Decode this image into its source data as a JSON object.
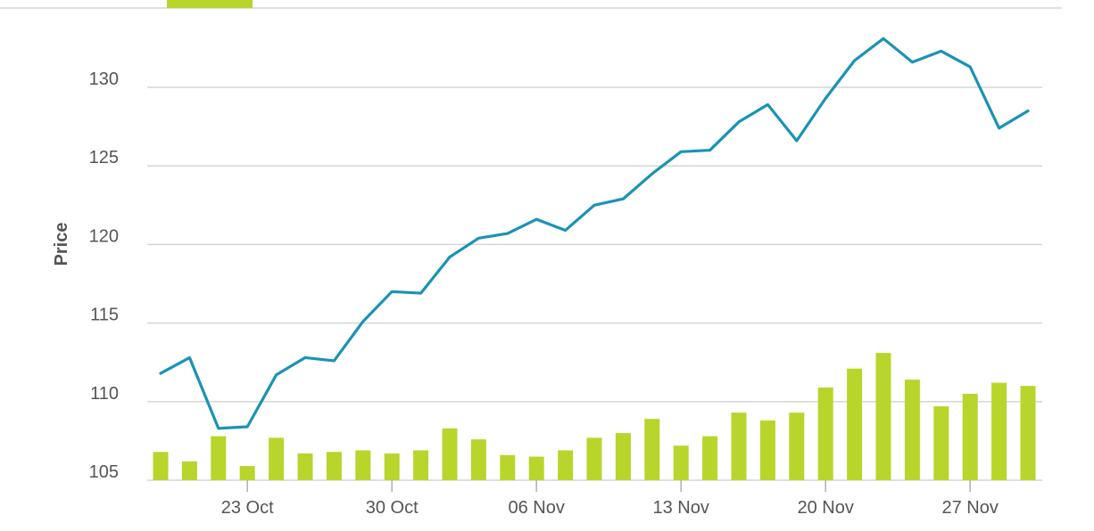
{
  "chart_data": {
    "type": "line",
    "title": "",
    "ylabel": "Price",
    "xlabel": "",
    "ylim": [
      105,
      133.5
    ],
    "yticks": [
      105,
      110,
      115,
      120,
      125,
      130
    ],
    "ytick_labels": [
      "105",
      "110",
      "115",
      "120",
      "125",
      "130"
    ],
    "xtick_labels": [
      {
        "date": "2023-10-23",
        "label": "23 Oct"
      },
      {
        "date": "2023-10-30",
        "label": "30 Oct"
      },
      {
        "date": "2023-11-06",
        "label": "06 Nov"
      },
      {
        "date": "2023-11-13",
        "label": "13 Nov"
      },
      {
        "date": "2023-11-20",
        "label": "20 Nov"
      },
      {
        "date": "2023-11-27",
        "label": "27 Nov"
      }
    ],
    "x": [
      "2023-10-18",
      "2023-10-19",
      "2023-10-20",
      "2023-10-23",
      "2023-10-24",
      "2023-10-25",
      "2023-10-26",
      "2023-10-27",
      "2023-10-30",
      "2023-10-31",
      "2023-11-01",
      "2023-11-02",
      "2023-11-03",
      "2023-11-06",
      "2023-11-07",
      "2023-11-08",
      "2023-11-09",
      "2023-11-10",
      "2023-11-13",
      "2023-11-14",
      "2023-11-15",
      "2023-11-16",
      "2023-11-17",
      "2023-11-20",
      "2023-11-21",
      "2023-11-22",
      "2023-11-23",
      "2023-11-24",
      "2023-11-27",
      "2023-11-28",
      "2023-11-29"
    ],
    "series": [
      {
        "type": "line",
        "values": [
          111.8,
          112.8,
          108.3,
          108.4,
          111.7,
          112.8,
          112.6,
          115.1,
          117.0,
          116.9,
          119.2,
          120.4,
          120.7,
          121.6,
          120.9,
          122.5,
          122.9,
          124.5,
          125.9,
          126.0,
          127.8,
          128.9,
          126.6,
          129.3,
          131.7,
          133.1,
          131.6,
          132.3,
          131.3,
          127.4,
          128.5
        ],
        "color": "#1a93b5"
      },
      {
        "type": "bar",
        "values": [
          106.8,
          106.2,
          107.8,
          105.9,
          107.7,
          106.7,
          106.8,
          106.9,
          106.7,
          106.9,
          108.3,
          107.6,
          106.6,
          106.5,
          106.9,
          107.7,
          108.0,
          108.9,
          107.2,
          107.8,
          109.3,
          108.8,
          109.3,
          110.9,
          112.1,
          113.1,
          111.4,
          109.7,
          110.5,
          111.2,
          111.0
        ],
        "color": "#b8d52b"
      }
    ],
    "grid": true,
    "legend": "none"
  },
  "colors": {
    "line": "#1a93b5",
    "bar": "#b8d52b",
    "grid": "#d6d6d6",
    "text": "#555555",
    "top_tab": "#b8d52b"
  },
  "top_tab": {
    "active": true
  }
}
